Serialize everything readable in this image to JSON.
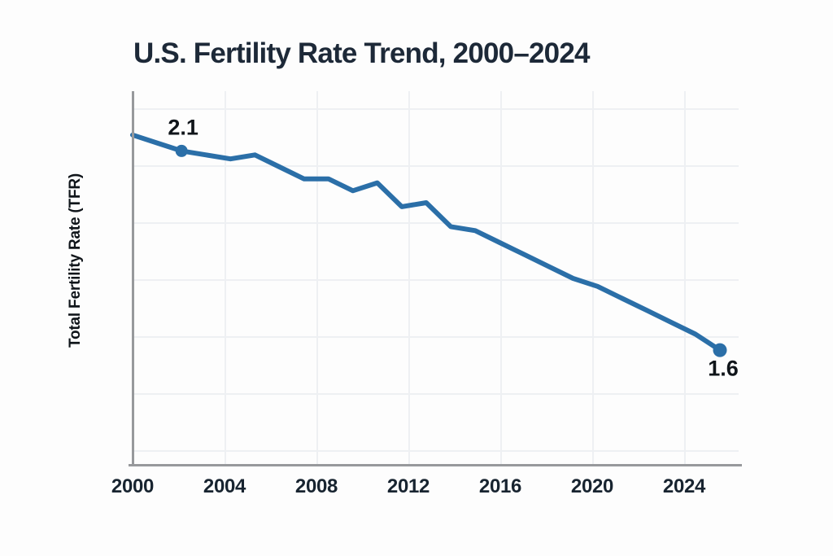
{
  "title": "U.S. Fertility Rate Trend, 2000–2024",
  "y_axis_label": "Total Fertility Rate (TFR)",
  "x_ticks": [
    "2000",
    "2004",
    "2008",
    "2012",
    "2016",
    "2020",
    "2024"
  ],
  "colors": {
    "line": "#2b6fa8",
    "title": "#1d2938",
    "tick_label": "#182430",
    "point_label": "#10151a",
    "axis": "#97999c",
    "grid": "#eef0f3",
    "background": "#fdfdfd"
  },
  "chart_data": {
    "type": "line",
    "title": "U.S. Fertility Rate Trend, 2000–2024",
    "xlabel": "",
    "ylabel": "Total Fertility Rate (TFR)",
    "x": [
      2000,
      2001,
      2002,
      2003,
      2004,
      2005,
      2006,
      2007,
      2008,
      2009,
      2010,
      2011,
      2012,
      2013,
      2014,
      2015,
      2016,
      2017,
      2018,
      2019,
      2020,
      2021,
      2022,
      2023,
      2024
    ],
    "series": [
      {
        "name": "Total Fertility Rate (TFR)",
        "values": [
          2.14,
          2.12,
          2.1,
          2.09,
          2.08,
          2.09,
          2.06,
          2.03,
          2.03,
          2.0,
          2.02,
          1.96,
          1.97,
          1.91,
          1.9,
          1.87,
          1.84,
          1.81,
          1.78,
          1.76,
          1.73,
          1.7,
          1.67,
          1.64,
          1.6
        ]
      }
    ],
    "xlim": [
      2000,
      2024
    ],
    "ylim": [
      1.31,
      2.25
    ],
    "x_tick_labels": [
      "2000",
      "2004",
      "2008",
      "2012",
      "2016",
      "2020",
      "2024"
    ],
    "y_tick_labels": [],
    "grid": true,
    "legend": false,
    "annotated_points": [
      {
        "x": 2002,
        "y": 2.1,
        "label": "2.1"
      },
      {
        "x": 2024,
        "y": 1.6,
        "label": "1.6"
      }
    ]
  }
}
